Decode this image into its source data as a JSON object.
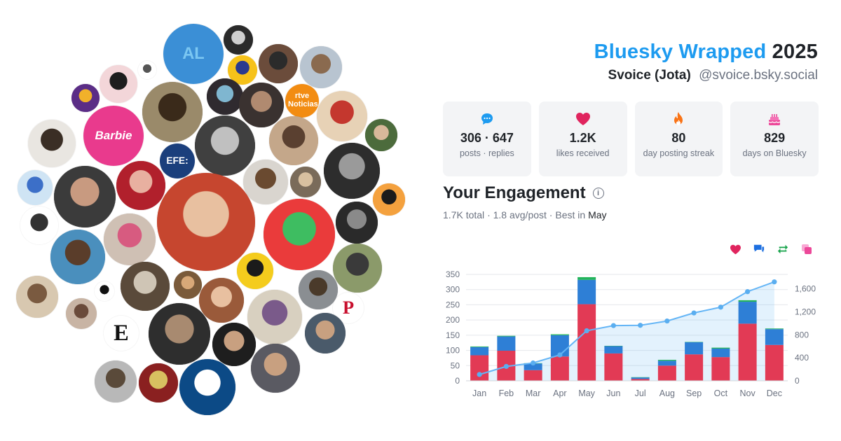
{
  "header": {
    "brand": "Bluesky Wrapped",
    "year": "2025",
    "display_name": "Svoice (Jota)",
    "handle": "@svoice.bsky.social"
  },
  "stats": [
    {
      "icon": "speech-bubble-icon",
      "value": "306 · 647",
      "caption": "posts · replies",
      "color": "#1d9bf0"
    },
    {
      "icon": "heart-icon",
      "value": "1.2K",
      "caption": "likes received",
      "color": "#e0245e"
    },
    {
      "icon": "flame-icon",
      "value": "80",
      "caption": "day posting streak",
      "color": "#f97316"
    },
    {
      "icon": "cake-icon",
      "value": "829",
      "caption": "days on Bluesky",
      "color": "#ec4899"
    }
  ],
  "engagement": {
    "title": "Your Engagement",
    "total": "1.7K",
    "total_label": "total",
    "avg": "1.8 avg/post",
    "best_label": "Best in",
    "best_month": "May",
    "sep": "·"
  },
  "legend": [
    {
      "icon": "heart-icon",
      "color": "#e0245e"
    },
    {
      "icon": "comment-icon",
      "color": "#1d6fe0"
    },
    {
      "icon": "repost-icon",
      "color": "#16a34a"
    },
    {
      "icon": "quote-icon",
      "color": "#ec4899"
    }
  ],
  "chart_data": {
    "type": "bar",
    "categories": [
      "Jan",
      "Feb",
      "Mar",
      "Apr",
      "May",
      "Jun",
      "Jul",
      "Aug",
      "Sep",
      "Oct",
      "Nov",
      "Dec"
    ],
    "series": [
      {
        "values": [
          84,
          99,
          35,
          80,
          252,
          90,
          6,
          50,
          87,
          78,
          188,
          118
        ],
        "color": "#e23a55"
      },
      {
        "values": [
          27,
          47,
          22,
          70,
          80,
          24,
          5,
          16,
          40,
          28,
          72,
          52
        ],
        "color": "#2e7fd6"
      },
      {
        "values": [
          2,
          2,
          1,
          3,
          9,
          1,
          1,
          3,
          1,
          3,
          5,
          2
        ],
        "color": "#22b45a"
      }
    ],
    "cumulative_line": {
      "values": [
        110,
        250,
        310,
        450,
        870,
        960,
        965,
        1040,
        1180,
        1280,
        1550,
        1720
      ],
      "color": "#64b5f6"
    },
    "ylim_left": [
      0,
      350
    ],
    "left_ticks": [
      "0",
      "50",
      "100",
      "150",
      "200",
      "250",
      "300",
      "350"
    ],
    "ylim_right": [
      0,
      1850
    ],
    "right_ticks": [
      {
        "v": 0,
        "label": "0"
      },
      {
        "v": 400,
        "label": "400"
      },
      {
        "v": 800,
        "label": "800"
      },
      {
        "v": 1200,
        "label": "1,200"
      },
      {
        "v": 1600,
        "label": "1,600"
      }
    ],
    "grid": true
  },
  "avatars": [
    {
      "name": "avatar-al-puppet",
      "label": "AL",
      "bg": "#3b8fd6",
      "fg": "#7bc7f2"
    },
    {
      "name": "avatar-bald-bw",
      "label": "",
      "bg": "#2a2a2a",
      "fg": "#cfcfcf"
    },
    {
      "name": "avatar-molecule",
      "label": "",
      "bg": "#ffffff",
      "fg": "#555555"
    },
    {
      "name": "avatar-incredibles",
      "label": "",
      "bg": "#f3d6d9",
      "fg": "#1d1d1d"
    },
    {
      "name": "avatar-purple-char",
      "label": "",
      "bg": "#5b2d86",
      "fg": "#f1b12a"
    },
    {
      "name": "avatar-cartoon-bike",
      "label": "",
      "bg": "#f6c21a",
      "fg": "#2a3a8f"
    },
    {
      "name": "avatar-man-suit",
      "label": "",
      "bg": "#6b4c3b",
      "fg": "#2b2b2b"
    },
    {
      "name": "avatar-building",
      "label": "",
      "bg": "#b8c4d0",
      "fg": "#8a6a4f"
    },
    {
      "name": "avatar-glasses-man",
      "label": "",
      "bg": "#9a8a6a",
      "fg": "#3a2a1a"
    },
    {
      "name": "avatar-dark-art",
      "label": "",
      "bg": "#2f2a2f",
      "fg": "#7fb6d0"
    },
    {
      "name": "avatar-man-car",
      "label": "",
      "bg": "#3a3230",
      "fg": "#b08a70"
    },
    {
      "name": "avatar-rtve",
      "label": "rtve Noticias",
      "bg": "#f28c12",
      "fg": "#ffffff"
    },
    {
      "name": "avatar-barbie",
      "label": "Barbie",
      "bg": "#e93a8d",
      "fg": "#ffffff"
    },
    {
      "name": "avatar-beard-drawing",
      "label": "",
      "bg": "#e9e6e1",
      "fg": "#3a2e25"
    },
    {
      "name": "avatar-bearded-hat",
      "label": "",
      "bg": "#c4a78a",
      "fg": "#5a4030"
    },
    {
      "name": "avatar-santa",
      "label": "",
      "bg": "#e7d2b6",
      "fg": "#c4372e"
    },
    {
      "name": "avatar-man-green",
      "label": "",
      "bg": "#4c6b3c",
      "fg": "#d8b89a"
    },
    {
      "name": "avatar-bw-hair",
      "label": "",
      "bg": "#404040",
      "fg": "#c0c0c0"
    },
    {
      "name": "avatar-woman-bw",
      "label": "",
      "bg": "#2d2d2d",
      "fg": "#9a9a9a"
    },
    {
      "name": "avatar-group-photo",
      "label": "",
      "bg": "#7a6b5a",
      "fg": "#d8c0a0"
    },
    {
      "name": "avatar-bald-painting",
      "label": "",
      "bg": "#d9d5cf",
      "fg": "#6a4a30"
    },
    {
      "name": "avatar-efe",
      "label": "EFE:",
      "bg": "#1b3f7c",
      "fg": "#ffffff"
    },
    {
      "name": "avatar-bluey",
      "label": "",
      "bg": "#cfe4f4",
      "fg": "#3c6fc8"
    },
    {
      "name": "avatar-man-beard",
      "label": "",
      "bg": "#3b3b3b",
      "fg": "#c89a80"
    },
    {
      "name": "avatar-red-bald",
      "label": "",
      "bg": "#b1202c",
      "fg": "#e8b0a0"
    },
    {
      "name": "avatar-child",
      "label": "",
      "bg": "#c6462f",
      "fg": "#e8c0a0"
    },
    {
      "name": "avatar-pride-flag",
      "label": "",
      "bg": "#f4a13e",
      "fg": "#1b1b1b"
    },
    {
      "name": "avatar-lincoln",
      "label": "",
      "bg": "#ffffff",
      "fg": "#333333"
    },
    {
      "name": "avatar-dino",
      "label": "",
      "bg": "#ea3b3b",
      "fg": "#3ebd61"
    },
    {
      "name": "avatar-man-bw-glasses",
      "label": "",
      "bg": "#2a2a2a",
      "fg": "#8a8a8a"
    },
    {
      "name": "avatar-bear",
      "label": "",
      "bg": "#4a8fbd",
      "fg": "#5a3d2a"
    },
    {
      "name": "avatar-drag",
      "label": "",
      "bg": "#cfc0b4",
      "fg": "#d75b80"
    },
    {
      "name": "avatar-man-window",
      "label": "",
      "bg": "#8b9a6a",
      "fg": "#3a3a3a"
    },
    {
      "name": "avatar-yellow-face",
      "label": "",
      "bg": "#f4cc1d",
      "fg": "#1b1b1b"
    },
    {
      "name": "avatar-man-neutral",
      "label": "",
      "bg": "#d8c8b0",
      "fg": "#7a5a40"
    },
    {
      "name": "avatar-skunk",
      "label": "",
      "bg": "#ffffff",
      "fg": "#111111"
    },
    {
      "name": "avatar-bearded-old",
      "label": "",
      "bg": "#5a4a3a",
      "fg": "#cfc5b5"
    },
    {
      "name": "avatar-brown-toy",
      "label": "",
      "bg": "#7a5a3a",
      "fg": "#d8a878"
    },
    {
      "name": "avatar-woman-portrait",
      "label": "",
      "bg": "#9a5a3a",
      "fg": "#e8c0a0"
    },
    {
      "name": "avatar-man-hall",
      "label": "",
      "bg": "#8a8e92",
      "fg": "#4a3a2a"
    },
    {
      "name": "avatar-publico",
      "label": "P",
      "bg": "#ffffff",
      "fg": "#c8102e"
    },
    {
      "name": "avatar-blonde-man",
      "label": "",
      "bg": "#c8b4a4",
      "fg": "#6a4a3a"
    },
    {
      "name": "avatar-queen",
      "label": "",
      "bg": "#d8d0c0",
      "fg": "#7a5a8a"
    },
    {
      "name": "avatar-el-espanol",
      "label": "E",
      "bg": "#ffffff",
      "fg": "#111111"
    },
    {
      "name": "avatar-man-dark",
      "label": "",
      "bg": "#2e2e2e",
      "fg": "#a88a70"
    },
    {
      "name": "avatar-man-black",
      "label": "",
      "bg": "#1e1e1e",
      "fg": "#c8a080"
    },
    {
      "name": "avatar-man-outdoors",
      "label": "",
      "bg": "#4a5a6a",
      "fg": "#c8a080"
    },
    {
      "name": "avatar-man-selfie",
      "label": "",
      "bg": "#5a5a62",
      "fg": "#c8a080"
    },
    {
      "name": "avatar-man-gray",
      "label": "",
      "bg": "#b8b8b8",
      "fg": "#5a4a3a"
    },
    {
      "name": "avatar-iron-maiden",
      "label": "",
      "bg": "#8a2020",
      "fg": "#d8c060"
    },
    {
      "name": "avatar-blue-logo",
      "label": "",
      "bg": "#0c4a86",
      "fg": "#ffffff"
    },
    {
      "name": "avatar-small-figure",
      "label": "",
      "bg": "#f4f4f4",
      "fg": "#9a4a3a"
    },
    {
      "name": "avatar-small-bw",
      "label": "",
      "bg": "#f0f0f0",
      "fg": "#4a4a4a"
    }
  ]
}
